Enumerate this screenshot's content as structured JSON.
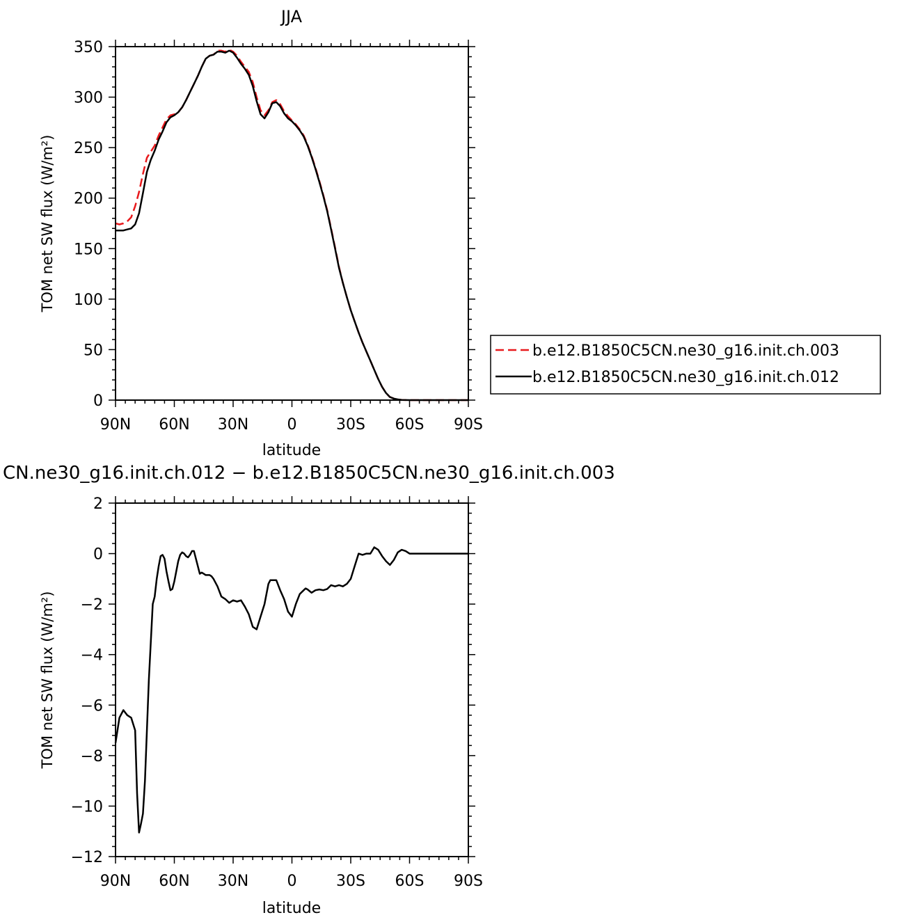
{
  "chart_data": [
    {
      "type": "line",
      "title": "JJA",
      "xlabel": "latitude",
      "ylabel": "TOM net SW flux (W/m²)",
      "xlim": [
        90,
        -90
      ],
      "ylim": [
        0,
        350
      ],
      "xticks": [
        {
          "value": 90,
          "label": "90N"
        },
        {
          "value": 60,
          "label": "60N"
        },
        {
          "value": 30,
          "label": "30N"
        },
        {
          "value": 0,
          "label": "0"
        },
        {
          "value": -30,
          "label": "30S"
        },
        {
          "value": -60,
          "label": "60S"
        },
        {
          "value": -90,
          "label": "90S"
        }
      ],
      "yticks": [
        {
          "value": 0,
          "label": "0"
        },
        {
          "value": 50,
          "label": "50"
        },
        {
          "value": 100,
          "label": "100"
        },
        {
          "value": 150,
          "label": "150"
        },
        {
          "value": 200,
          "label": "200"
        },
        {
          "value": 250,
          "label": "250"
        },
        {
          "value": 300,
          "label": "300"
        },
        {
          "value": 350,
          "label": "350"
        }
      ],
      "legend_position": "right",
      "series": [
        {
          "name": "b.e12.B1850C5CN.ne30_g16.init.ch.003",
          "color": "#e8191c",
          "dash": "dashed",
          "x": [
            90,
            88,
            86,
            84,
            82,
            80,
            78,
            76,
            74,
            72,
            70,
            68,
            66,
            64,
            62,
            60,
            58,
            56,
            54,
            52,
            50,
            48,
            46,
            44,
            42,
            40,
            38,
            36,
            34,
            32,
            30,
            28,
            26,
            24,
            22,
            20,
            18,
            16,
            14,
            12,
            10,
            8,
            6,
            4,
            2,
            0,
            -2,
            -4,
            -6,
            -8,
            -10,
            -12,
            -14,
            -16,
            -18,
            -20,
            -22,
            -24,
            -26,
            -28,
            -30,
            -32,
            -34,
            -36,
            -38,
            -40,
            -42,
            -44,
            -46,
            -48,
            -50,
            -52,
            -54,
            -56,
            -58,
            -60,
            -62,
            -64,
            -66,
            -68,
            -70,
            -72,
            -74,
            -76,
            -78,
            -80,
            -82,
            -84,
            -86,
            -88,
            -90
          ],
          "y": [
            175,
            174,
            175,
            177,
            181,
            192,
            206,
            224,
            240,
            246,
            252,
            262,
            270,
            278,
            282,
            283,
            285,
            290,
            297,
            305,
            313,
            321,
            330,
            338,
            341,
            342,
            346,
            346,
            345,
            347,
            345,
            341,
            335,
            330,
            325,
            315,
            300,
            287,
            282,
            287,
            295,
            297,
            293,
            286,
            281,
            277,
            273,
            268,
            262,
            253,
            242,
            230,
            217,
            203,
            188,
            170,
            151,
            132,
            116,
            102,
            89,
            78,
            67,
            57,
            48,
            39,
            30,
            21,
            13,
            7,
            3,
            1.5,
            0.7,
            0.2,
            0.1,
            0,
            0,
            0,
            0,
            0,
            0,
            0,
            0,
            0,
            0,
            0,
            0,
            0,
            0,
            0,
            0
          ]
        },
        {
          "name": "b.e12.B1850C5CN.ne30_g16.init.ch.012",
          "color": "#000000",
          "dash": "solid",
          "x": [
            90,
            88,
            86,
            84,
            82,
            80,
            78,
            76,
            74,
            72,
            70,
            68,
            66,
            64,
            62,
            60,
            58,
            56,
            54,
            52,
            50,
            48,
            46,
            44,
            42,
            40,
            38,
            36,
            34,
            32,
            30,
            28,
            26,
            24,
            22,
            20,
            18,
            16,
            14,
            12,
            10,
            8,
            6,
            4,
            2,
            0,
            -2,
            -4,
            -6,
            -8,
            -10,
            -12,
            -14,
            -16,
            -18,
            -20,
            -22,
            -24,
            -26,
            -28,
            -30,
            -32,
            -34,
            -36,
            -38,
            -40,
            -42,
            -44,
            -46,
            -48,
            -50,
            -52,
            -54,
            -56,
            -58,
            -60,
            -62,
            -64,
            -66,
            -68,
            -70,
            -72,
            -74,
            -76,
            -78,
            -80,
            -82,
            -84,
            -86,
            -88,
            -90
          ],
          "y": [
            168,
            168,
            168,
            169,
            170,
            174,
            185,
            205,
            226,
            238,
            247,
            258,
            266,
            275,
            280,
            282,
            285,
            290,
            297,
            305,
            313,
            321,
            330,
            338,
            341,
            342,
            345,
            345,
            344,
            346,
            344,
            339,
            333,
            328,
            322,
            311,
            296,
            283,
            279,
            285,
            294,
            295,
            291,
            284,
            279,
            276,
            272,
            267,
            261,
            252,
            241,
            229,
            216,
            202,
            187,
            169,
            150,
            131,
            116,
            102,
            89,
            78,
            67,
            57,
            48,
            39,
            30,
            21,
            13,
            7,
            3,
            1.5,
            0.7,
            0.2,
            0.1,
            0,
            0,
            0,
            0,
            0,
            0,
            0,
            0,
            0,
            0,
            0,
            0,
            0,
            0,
            0,
            0
          ]
        }
      ]
    },
    {
      "type": "line",
      "title": "CN.ne30_g16.init.ch.012 − b.e12.B1850C5CN.ne30_g16.init.ch.003",
      "xlabel": "latitude",
      "ylabel": "TOM net SW flux (W/m²)",
      "xlim": [
        90,
        -90
      ],
      "ylim": [
        -12,
        2
      ],
      "xticks": [
        {
          "value": 90,
          "label": "90N"
        },
        {
          "value": 60,
          "label": "60N"
        },
        {
          "value": 30,
          "label": "30N"
        },
        {
          "value": 0,
          "label": "0"
        },
        {
          "value": -30,
          "label": "30S"
        },
        {
          "value": -60,
          "label": "60S"
        },
        {
          "value": -90,
          "label": "90S"
        }
      ],
      "yticks": [
        {
          "value": 2,
          "label": "2"
        },
        {
          "value": 0,
          "label": "0"
        },
        {
          "value": -2,
          "label": "−2"
        },
        {
          "value": -4,
          "label": "−4"
        },
        {
          "value": -6,
          "label": "−6"
        },
        {
          "value": -8,
          "label": "−8"
        },
        {
          "value": -10,
          "label": "−10"
        },
        {
          "value": -12,
          "label": "−12"
        }
      ],
      "series": [
        {
          "color": "#000000",
          "dash": "solid",
          "x": [
            90,
            88,
            86,
            85,
            84,
            82,
            80,
            79,
            78,
            77,
            76,
            75,
            74,
            73,
            72,
            71,
            70,
            69,
            68,
            67,
            66,
            65,
            64,
            63,
            62,
            61,
            60,
            59,
            58,
            57,
            56,
            55,
            54,
            53,
            52,
            51,
            50,
            49,
            48,
            47,
            46,
            45,
            44,
            43,
            42,
            41,
            40,
            38,
            36,
            34,
            32,
            30,
            28,
            26,
            24,
            22,
            20,
            18,
            16,
            14,
            12,
            11,
            10,
            8,
            6,
            4,
            2,
            0,
            -2,
            -4,
            -6,
            -7,
            -8,
            -10,
            -12,
            -14,
            -16,
            -18,
            -20,
            -22,
            -24,
            -26,
            -28,
            -30,
            -32,
            -34,
            -36,
            -38,
            -40,
            -42,
            -44,
            -46,
            -48,
            -50,
            -52,
            -54,
            -56,
            -58,
            -60,
            -62,
            -64,
            -66,
            -68,
            -70,
            -75,
            -80,
            -85,
            -90
          ],
          "y": [
            -7.5,
            -6.5,
            -6.2,
            -6.3,
            -6.4,
            -6.5,
            -7,
            -9.5,
            -11.05,
            -10.7,
            -10.3,
            -9,
            -7,
            -5,
            -3.5,
            -2,
            -1.7,
            -1,
            -0.5,
            -0.1,
            -0.05,
            -0.2,
            -0.7,
            -1.1,
            -1.45,
            -1.4,
            -1.1,
            -0.7,
            -0.3,
            -0.05,
            0.05,
            0,
            -0.1,
            -0.15,
            -0.05,
            0.1,
            0.1,
            -0.2,
            -0.5,
            -0.8,
            -0.75,
            -0.8,
            -0.85,
            -0.85,
            -0.85,
            -0.9,
            -1,
            -1.3,
            -1.7,
            -1.8,
            -1.95,
            -1.85,
            -1.9,
            -1.85,
            -2.1,
            -2.4,
            -2.9,
            -3,
            -2.5,
            -2,
            -1.2,
            -1.05,
            -1.05,
            -1.05,
            -1.45,
            -1.8,
            -2.3,
            -2.5,
            -2.0,
            -1.6,
            -1.45,
            -1.38,
            -1.42,
            -1.55,
            -1.45,
            -1.42,
            -1.45,
            -1.4,
            -1.25,
            -1.3,
            -1.25,
            -1.3,
            -1.2,
            -1.0,
            -0.5,
            0,
            -0.05,
            0,
            0,
            0.25,
            0.15,
            -0.1,
            -0.3,
            -0.45,
            -0.25,
            0.05,
            0.15,
            0.1,
            0,
            0,
            0,
            0,
            0,
            0,
            0,
            0,
            0,
            0
          ]
        }
      ]
    }
  ]
}
